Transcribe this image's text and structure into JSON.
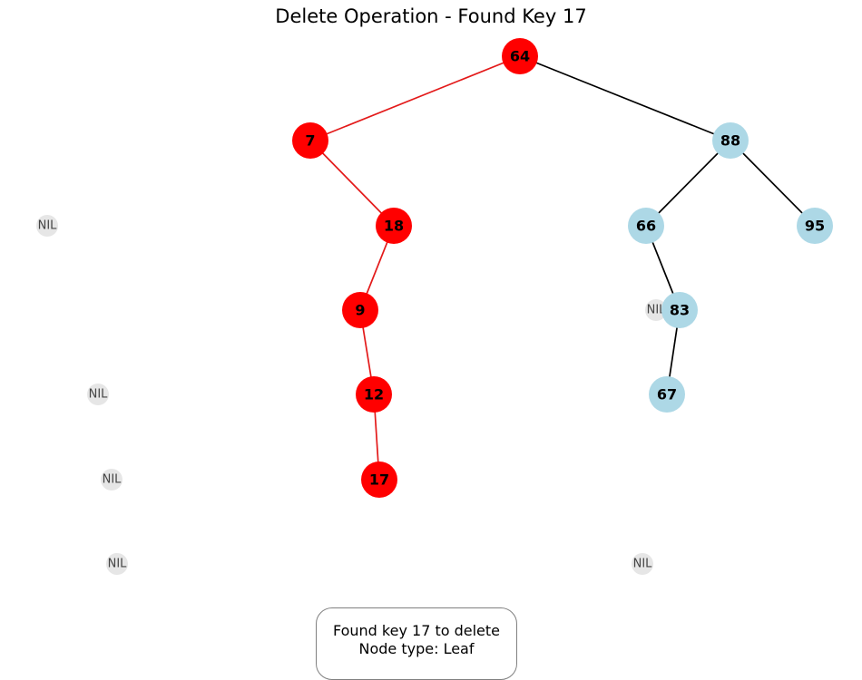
{
  "title": "Delete Operation - Found Key 17",
  "colors": {
    "highlight": "#ff0000",
    "node": "#add8e6",
    "nil": "#e6e6e6",
    "highlight_edge": "#e31a1a",
    "edge": "#000000"
  },
  "nodes": [
    {
      "key": "64",
      "highlight": true
    },
    {
      "key": "7",
      "highlight": true
    },
    {
      "key": "88",
      "highlight": false
    },
    {
      "key": "18",
      "highlight": true
    },
    {
      "key": "66",
      "highlight": false
    },
    {
      "key": "95",
      "highlight": false
    },
    {
      "key": "9",
      "highlight": true
    },
    {
      "key": "83",
      "highlight": false
    },
    {
      "key": "12",
      "highlight": true
    },
    {
      "key": "67",
      "highlight": false
    },
    {
      "key": "17",
      "highlight": true
    }
  ],
  "edges": [
    {
      "from": "64",
      "to": "7",
      "highlight": true
    },
    {
      "from": "64",
      "to": "88",
      "highlight": false
    },
    {
      "from": "7",
      "to": "18",
      "highlight": true
    },
    {
      "from": "88",
      "to": "66",
      "highlight": false
    },
    {
      "from": "88",
      "to": "95",
      "highlight": false
    },
    {
      "from": "18",
      "to": "9",
      "highlight": true
    },
    {
      "from": "66",
      "to": "83",
      "highlight": false
    },
    {
      "from": "9",
      "to": "12",
      "highlight": true
    },
    {
      "from": "83",
      "to": "67",
      "highlight": false
    },
    {
      "from": "12",
      "to": "17",
      "highlight": true
    }
  ],
  "nil_label": "NIL",
  "nil_count": 6,
  "info": {
    "line1": "Found key 17 to delete",
    "line2": "Node type: Leaf"
  }
}
